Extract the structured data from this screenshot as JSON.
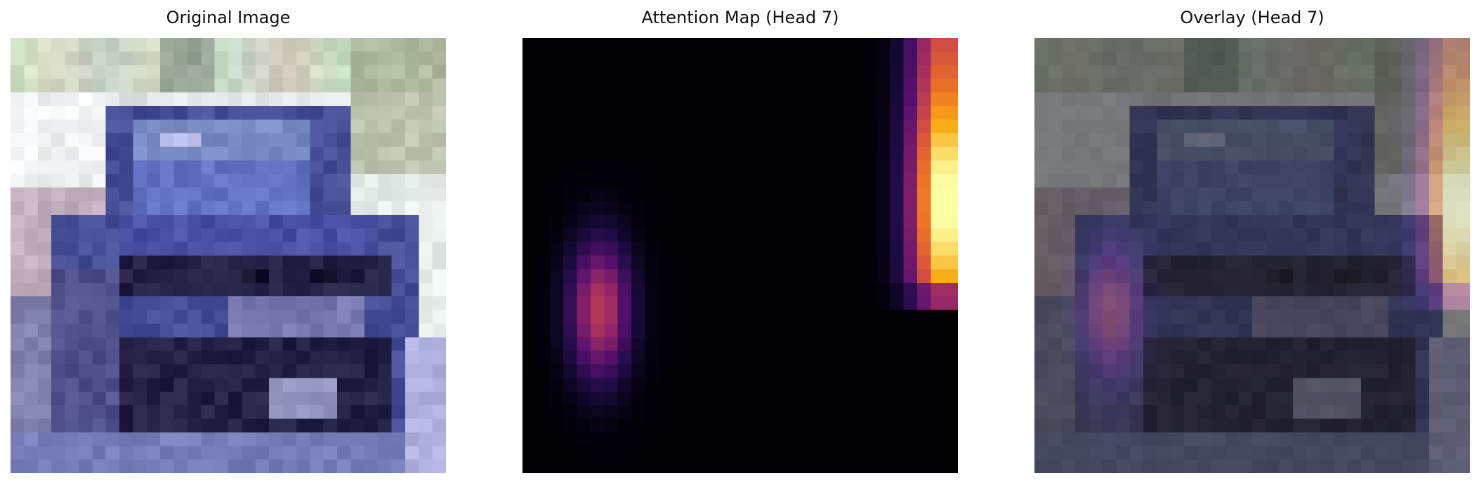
{
  "figure": {
    "panels": [
      {
        "title": "Original Image"
      },
      {
        "title": "Attention Map (Head 7)"
      },
      {
        "title": "Overlay (Head 7)"
      }
    ]
  }
}
